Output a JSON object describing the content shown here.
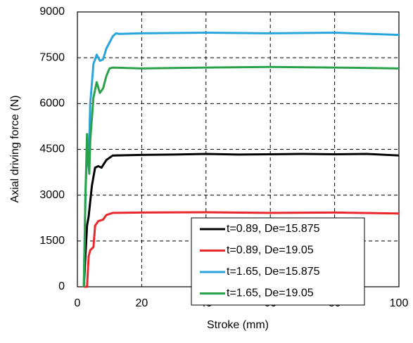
{
  "chart_data": {
    "type": "line",
    "x_label": "Stroke (mm)",
    "y_label": "Axial driving force (N)",
    "xlim": [
      0,
      100
    ],
    "xticks": [
      0,
      20,
      40,
      60,
      80,
      100
    ],
    "ylim": [
      0,
      9000
    ],
    "yticks": [
      0,
      1500,
      3000,
      4500,
      6000,
      7500,
      9000
    ],
    "grid": true,
    "legend": "lower right",
    "series": [
      {
        "name": "t=0.89, De=15.875",
        "color": "#000000",
        "x": [
          2,
          3,
          3.5,
          4.5,
          5.5,
          6.5,
          7.5,
          9,
          11,
          20,
          30,
          40,
          50,
          60,
          70,
          80,
          90,
          100
        ],
        "values": [
          0,
          2000,
          2300,
          3300,
          3900,
          3950,
          3900,
          4150,
          4300,
          4320,
          4330,
          4350,
          4330,
          4340,
          4350,
          4340,
          4350,
          4300
        ]
      },
      {
        "name": "t=0.89, De=19.05",
        "color": "#e8282b",
        "x": [
          2,
          3,
          3.5,
          4,
          5,
          5.5,
          6.5,
          8,
          9,
          11,
          20,
          40,
          60,
          80,
          100
        ],
        "values": [
          0,
          0,
          1000,
          1200,
          1300,
          2000,
          2150,
          2200,
          2350,
          2420,
          2430,
          2440,
          2420,
          2430,
          2400
        ]
      },
      {
        "name": "t=1.65, De=15.875",
        "color": "#2aa5dc",
        "x": [
          2,
          2.5,
          3,
          3.5,
          4,
          5,
          6,
          7,
          8,
          9,
          11,
          12,
          13,
          20,
          40,
          60,
          80,
          100
        ],
        "values": [
          0,
          3000,
          4500,
          4000,
          6000,
          7300,
          7600,
          7400,
          7450,
          7800,
          8200,
          8300,
          8280,
          8300,
          8320,
          8300,
          8320,
          8250
        ]
      },
      {
        "name": "t=1.65, De=19.05",
        "color": "#2aa24a",
        "x": [
          2,
          2.5,
          3,
          3.3,
          3.7,
          4,
          5,
          6,
          7,
          8,
          9,
          10,
          11,
          20,
          40,
          60,
          80,
          100
        ],
        "values": [
          0,
          3000,
          5000,
          4200,
          3700,
          4800,
          6200,
          6700,
          6350,
          6500,
          6900,
          7150,
          7180,
          7150,
          7180,
          7200,
          7180,
          7150
        ]
      }
    ]
  }
}
